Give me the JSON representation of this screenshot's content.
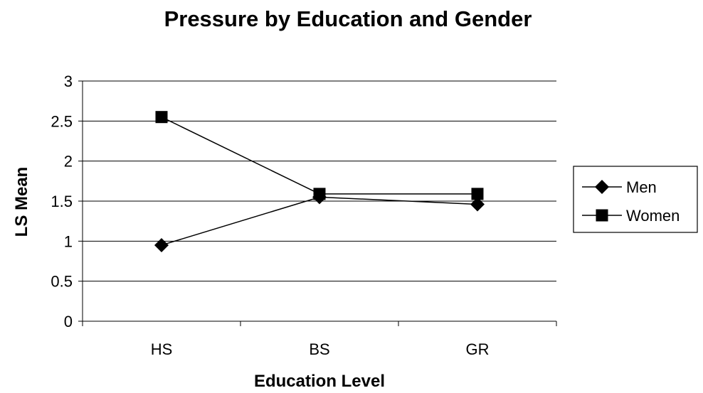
{
  "chart_data": {
    "type": "line",
    "title": "Pressure by Education and Gender",
    "xlabel": "Education Level",
    "ylabel": "LS Mean",
    "categories": [
      "HS",
      "BS",
      "GR"
    ],
    "ylim": [
      0,
      3
    ],
    "yticks": [
      "0",
      "0.5",
      "1",
      "1.5",
      "2",
      "2.5",
      "3"
    ],
    "grid": true,
    "legend_position": "right",
    "series": [
      {
        "name": "Men",
        "marker": "diamond",
        "values": [
          0.95,
          1.55,
          1.46
        ]
      },
      {
        "name": "Women",
        "marker": "square",
        "values": [
          2.55,
          1.59,
          1.59
        ]
      }
    ],
    "colors": {
      "line": "#000000",
      "grid": "#000000",
      "background": "#ffffff"
    }
  }
}
